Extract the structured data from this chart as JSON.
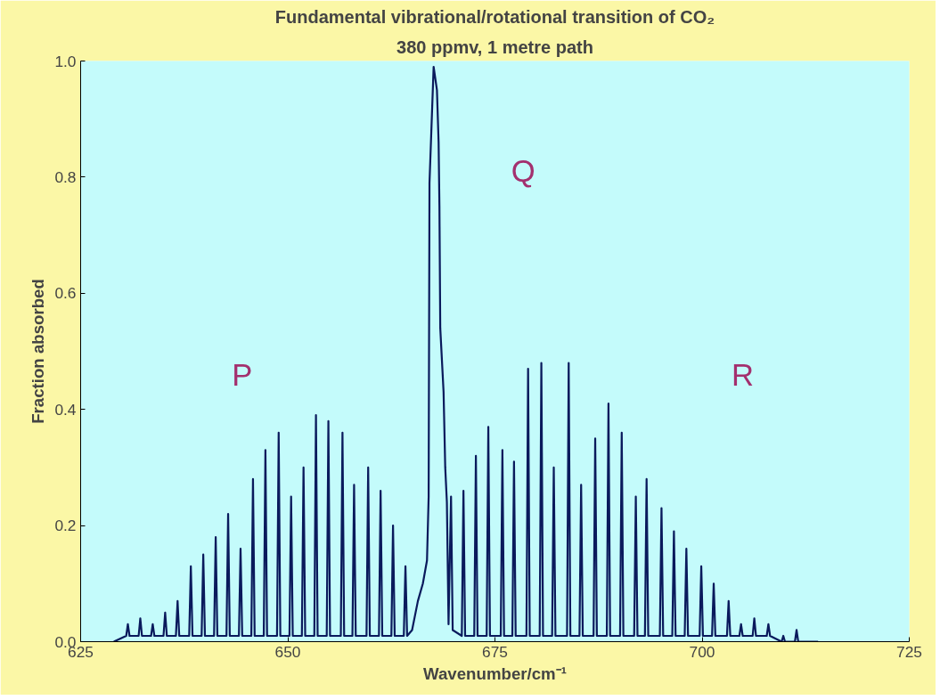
{
  "chart_data": {
    "type": "line",
    "title": "Fundamental vibrational/rotational transition of CO₂",
    "subtitle": "380 ppmv, 1 metre path",
    "xlabel": "Wavenumber/cm⁻¹",
    "ylabel": "Fraction absorbed",
    "color": "#0a1a5c",
    "xlim": [
      625,
      725
    ],
    "ylim": [
      0,
      1.0
    ],
    "xticks": [
      625,
      650,
      675,
      700,
      725
    ],
    "yticks": [
      {
        "value": 0,
        "label": "0.0"
      },
      {
        "value": 0.2,
        "label": "0.2"
      },
      {
        "value": 0.4,
        "label": "0.4"
      },
      {
        "value": 0.6,
        "label": "0.6"
      },
      {
        "value": 0.8,
        "label": "0.8"
      },
      {
        "value": 1.0,
        "label": "1.0"
      }
    ],
    "annotations": [
      "P",
      "Q",
      "R"
    ],
    "x": [
      629.0,
      630.5,
      630.7,
      630.9,
      632.0,
      632.2,
      632.4,
      633.5,
      633.7,
      633.9,
      635.0,
      635.2,
      635.4,
      636.5,
      636.7,
      636.9,
      638.1,
      638.3,
      638.5,
      639.6,
      639.8,
      640.0,
      641.1,
      641.3,
      641.5,
      642.6,
      642.8,
      643.0,
      644.1,
      644.3,
      644.5,
      645.6,
      645.8,
      646.0,
      647.1,
      647.3,
      647.5,
      648.7,
      648.9,
      649.1,
      650.2,
      650.4,
      650.6,
      651.7,
      651.9,
      652.1,
      653.2,
      653.4,
      653.6,
      654.7,
      654.9,
      655.1,
      656.4,
      656.6,
      656.8,
      657.8,
      658.0,
      658.2,
      659.5,
      659.7,
      659.9,
      661.0,
      661.2,
      661.4,
      662.5,
      662.7,
      662.9,
      664.0,
      664.2,
      664.4,
      665.0,
      665.7,
      666.3,
      666.8,
      667.0,
      667.1,
      667.6,
      668.0,
      668.2,
      668.3,
      668.4,
      668.8,
      669.0,
      669.2,
      669.4,
      669.7,
      669.9,
      671.0,
      671.2,
      671.4,
      672.5,
      672.7,
      672.9,
      674.0,
      674.2,
      674.4,
      675.7,
      675.9,
      676.1,
      677.1,
      677.3,
      677.5,
      678.8,
      679.0,
      679.2,
      680.4,
      680.6,
      680.8,
      681.9,
      682.1,
      682.3,
      683.7,
      683.9,
      684.1,
      685.2,
      685.4,
      685.6,
      686.9,
      687.1,
      687.3,
      688.5,
      688.7,
      688.9,
      690.1,
      690.3,
      690.5,
      691.8,
      692.0,
      692.2,
      693.1,
      693.3,
      693.5,
      694.9,
      695.1,
      695.3,
      696.4,
      696.6,
      696.8,
      697.9,
      698.1,
      698.3,
      699.7,
      699.9,
      700.1,
      701.2,
      701.4,
      701.6,
      703.0,
      703.2,
      703.4,
      704.5,
      704.7,
      704.9,
      706.1,
      706.3,
      706.5,
      707.8,
      708.0,
      708.2,
      709.6,
      709.8,
      710.0,
      711.2,
      711.4,
      711.6,
      714.0
    ],
    "values": [
      0.0,
      0.01,
      0.03,
      0.01,
      0.01,
      0.04,
      0.01,
      0.01,
      0.03,
      0.01,
      0.01,
      0.05,
      0.01,
      0.01,
      0.07,
      0.01,
      0.01,
      0.13,
      0.01,
      0.01,
      0.15,
      0.01,
      0.01,
      0.18,
      0.01,
      0.01,
      0.22,
      0.01,
      0.01,
      0.16,
      0.01,
      0.01,
      0.28,
      0.01,
      0.01,
      0.33,
      0.01,
      0.01,
      0.36,
      0.01,
      0.01,
      0.25,
      0.01,
      0.01,
      0.3,
      0.01,
      0.01,
      0.39,
      0.01,
      0.01,
      0.38,
      0.01,
      0.01,
      0.36,
      0.01,
      0.01,
      0.27,
      0.01,
      0.01,
      0.3,
      0.01,
      0.01,
      0.26,
      0.01,
      0.01,
      0.2,
      0.01,
      0.01,
      0.13,
      0.01,
      0.02,
      0.07,
      0.1,
      0.14,
      0.25,
      0.79,
      0.99,
      0.95,
      0.86,
      0.75,
      0.54,
      0.43,
      0.3,
      0.24,
      0.03,
      0.25,
      0.02,
      0.01,
      0.26,
      0.01,
      0.01,
      0.32,
      0.01,
      0.01,
      0.37,
      0.01,
      0.01,
      0.33,
      0.01,
      0.01,
      0.31,
      0.01,
      0.01,
      0.47,
      0.01,
      0.01,
      0.48,
      0.01,
      0.01,
      0.3,
      0.01,
      0.01,
      0.48,
      0.01,
      0.01,
      0.27,
      0.01,
      0.01,
      0.35,
      0.01,
      0.01,
      0.41,
      0.01,
      0.01,
      0.36,
      0.01,
      0.01,
      0.25,
      0.01,
      0.01,
      0.28,
      0.01,
      0.01,
      0.23,
      0.01,
      0.01,
      0.19,
      0.01,
      0.01,
      0.16,
      0.01,
      0.01,
      0.13,
      0.01,
      0.01,
      0.1,
      0.01,
      0.01,
      0.07,
      0.01,
      0.01,
      0.03,
      0.01,
      0.01,
      0.04,
      0.01,
      0.01,
      0.03,
      0.01,
      0.0,
      0.01,
      0.0,
      0.0,
      0.02,
      0.0,
      0.0
    ]
  }
}
